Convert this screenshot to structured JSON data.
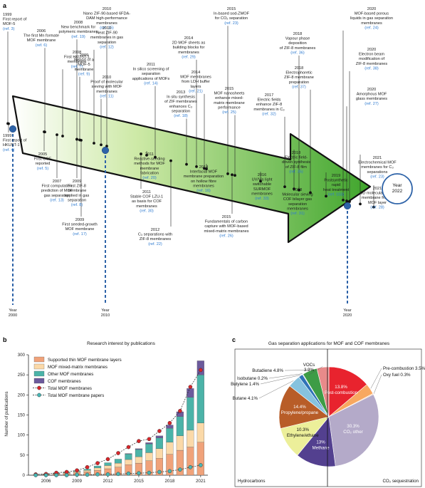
{
  "panels": {
    "a": "a",
    "b": "b",
    "c": "c"
  },
  "timeline": {
    "arrow_label": "Year 2022",
    "year_markers": [
      {
        "lines": [
          "Year",
          "2000"
        ]
      },
      {
        "lines": [
          "Year",
          "2010"
        ]
      },
      {
        "lines": [
          "Year",
          "2020"
        ]
      }
    ],
    "events": [
      {
        "lines": [
          "1999",
          "First report of",
          "MOF-5"
        ],
        "ref": "(ref. 3)"
      },
      {
        "lines": [
          "1999",
          "First report of",
          "HKUST-1"
        ],
        "ref": "(ref. 4)"
      },
      {
        "lines": [
          "2005",
          "First COF",
          "reported"
        ],
        "ref": "(ref. 5)"
      },
      {
        "lines": [
          "2006",
          "The first Mn formate",
          "MOF membrane"
        ],
        "ref": "(ref. 6)"
      },
      {
        "lines": [
          "2007",
          "First computation",
          "prediction of MOF",
          "gas separation"
        ],
        "ref": "(ref. 13)"
      },
      {
        "lines": [
          "2008",
          "New benchmark for",
          "polymeric membranes"
        ],
        "ref": "(ref. 19)"
      },
      {
        "lines": [
          "2008",
          "First HKUST-1",
          "membrane"
        ],
        "ref": "(ref. 7)"
      },
      {
        "lines": [
          "2009",
          "First ZIF-8",
          "membrane",
          "applied in gas",
          "separation"
        ],
        "ref": "(ref. 8)"
      },
      {
        "lines": [
          "2009",
          "First seeded-growth",
          "MOF membrane"
        ],
        "ref": "(ref. 17)"
      },
      {
        "lines": [
          "2009",
          "Report of a",
          "MOF-5",
          "membrane"
        ],
        "ref": "(ref. 9)"
      },
      {
        "lines": [
          "2010",
          "Nano ZIF-90-based 6FDA-",
          "DAM high-performance",
          "membranes"
        ],
        "ref": "(ref. 15)"
      },
      {
        "lines": [
          "2010",
          "Neat ZIF-90",
          "membranes in gas",
          "separation"
        ],
        "ref": "(ref. 12)"
      },
      {
        "lines": [
          "2010",
          "Proof of molecular",
          "sieving with MOF",
          "membranes"
        ],
        "ref": "(ref. 11)"
      },
      {
        "lines": [
          "2011",
          "In silico screening of",
          "separation",
          "applications of MOFs"
        ],
        "ref": "(ref. 14)"
      },
      {
        "lines": [
          "2011",
          "Reactive-seeding",
          "methods for MOF",
          "membrane",
          "fabrication"
        ],
        "ref": "(ref. 20)"
      },
      {
        "lines": [
          "2011",
          "Stable COF LZU-1",
          "as basis for COF",
          "membranes"
        ],
        "ref": "(ref. 30)"
      },
      {
        "lines": [
          "2012",
          "C₃ separations with",
          "ZIF-8 membranes"
        ],
        "ref": "(ref. 22)"
      },
      {
        "lines": [
          "2013",
          "In situ synthesis",
          "of ZIF membranes",
          "enhances C₃",
          "separation"
        ],
        "ref": "(ref. 18)"
      },
      {
        "lines": [
          "2014",
          "2D MOF sheets as",
          "building blocks for",
          "membranes"
        ],
        "ref": "(ref. 29)"
      },
      {
        "lines": [
          "2014",
          "MOF membranes",
          "from LDH buffer",
          "layers"
        ],
        "ref": "(ref. 21)"
      },
      {
        "lines": [
          "2014",
          "Interfacial MOF",
          "membrane preparation",
          "on hollow fibre",
          "membranes"
        ],
        "ref": "(ref. 16)"
      },
      {
        "lines": [
          "2015",
          "In-based sod-ZMOF",
          "for CO₂ separation"
        ],
        "ref": "(ref. 23)"
      },
      {
        "lines": [
          "2015",
          "MOF nanosheets",
          "enhance mixed-",
          "matrix membrane",
          "performance"
        ],
        "ref": "(ref. 25)"
      },
      {
        "lines": [
          "2015",
          "Fundamentals of carbon",
          "capture with MOF-based",
          "mixed-matrix membranes"
        ],
        "ref": "(ref. 26)"
      },
      {
        "lines": [
          "2016",
          "UV/Vis light",
          "switchable",
          "SURMOF",
          "membranes"
        ],
        "ref": "(ref. 33)"
      },
      {
        "lines": [
          "2017",
          "Electric fields",
          "enhance ZIF-8",
          "membranes in C₃"
        ],
        "ref": "(ref. 32)"
      },
      {
        "lines": [
          "2018",
          "Vapour phase",
          "deposition",
          "of ZIF-8 membranes"
        ],
        "ref": "(ref. 36)"
      },
      {
        "lines": [
          "2018",
          "Electrophoretic",
          "ZIF-8 membrane",
          "preparation"
        ],
        "ref": "(ref. 37)"
      },
      {
        "lines": [
          "2018",
          "Electric field-",
          "driven synthesis",
          "of ZIF-8 film"
        ],
        "ref": "(ref. 35)"
      },
      {
        "lines": [
          "2018",
          "Molecular sieving",
          "COF bilayer gas",
          "separation",
          "membranes"
        ],
        "ref": "(ref. 31)"
      },
      {
        "lines": [
          "2019",
          "Postsynthetic",
          "rapid",
          "heat treatment"
        ],
        "ref": "(ref. 103)"
      },
      {
        "lines": [
          "2020",
          "MOF-based porous",
          "liquids in gas separation",
          "membranes"
        ],
        "ref": "(ref. 24)"
      },
      {
        "lines": [
          "2020",
          "Electron beam",
          "modification of",
          "ZIF-8 membranes"
        ],
        "ref": "(ref. 38)"
      },
      {
        "lines": [
          "2020",
          "Amorphous MOF",
          "glass membranes"
        ],
        "ref": "(ref. 27)"
      },
      {
        "lines": [
          "2021",
          "Electrochemical MOF",
          "membranes for C₃",
          "separations"
        ],
        "ref": "(ref. 23)"
      },
      {
        "lines": [
          "2021",
          "0D molecular sieve",
          "membrane from a",
          "MOF layer"
        ],
        "ref": "(ref. 28)"
      }
    ]
  },
  "chart_data": [
    {
      "type": "bar",
      "title": "Research interest by publications",
      "ylabel": "Number of publications",
      "xlabel": "",
      "ylim": [
        0,
        300
      ],
      "yticks": [
        0,
        50,
        100,
        150,
        200,
        250,
        300
      ],
      "x": [
        2005,
        2006,
        2007,
        2008,
        2009,
        2010,
        2011,
        2012,
        2013,
        2014,
        2015,
        2016,
        2017,
        2018,
        2019,
        2020,
        2021
      ],
      "xticks": [
        2006,
        2009,
        2012,
        2015,
        2018,
        2021
      ],
      "xtick_labels": [
        "2006",
        "2009",
        "2012",
        "2015",
        "2018",
        "2021"
      ],
      "legend_position": "top-left",
      "series": [
        {
          "name": "Supported thin MOF membrane layers",
          "kind": "bar",
          "color": "#f0a27a",
          "values": [
            1,
            2,
            3,
            4,
            6,
            8,
            12,
            16,
            20,
            26,
            30,
            36,
            42,
            52,
            62,
            70,
            82
          ]
        },
        {
          "name": "MOF mixed-matrix membranes",
          "kind": "bar",
          "color": "#fbd9a8",
          "values": [
            0,
            1,
            1,
            2,
            3,
            4,
            6,
            8,
            10,
            13,
            16,
            20,
            24,
            30,
            36,
            42,
            48
          ]
        },
        {
          "name": "Other MOF membranes",
          "kind": "bar",
          "color": "#4bb3a8",
          "values": [
            0,
            0,
            1,
            1,
            2,
            3,
            5,
            7,
            10,
            14,
            18,
            22,
            27,
            35,
            48,
            82,
            120
          ]
        },
        {
          "name": "COF membranes",
          "kind": "bar",
          "color": "#6c5a9c",
          "values": [
            0,
            0,
            0,
            0,
            0,
            0,
            0,
            0,
            0,
            1,
            2,
            3,
            5,
            8,
            12,
            22,
            35
          ]
        },
        {
          "name": "Total MOF membranes",
          "kind": "line",
          "color": "#d8262a",
          "values": [
            2,
            3,
            6,
            8,
            12,
            20,
            30,
            40,
            55,
            70,
            85,
            90,
            110,
            130,
            160,
            220,
            262
          ]
        },
        {
          "name": "Total MOF membrane papers",
          "kind": "line",
          "color": "#48b6b4",
          "values": [
            0,
            0,
            0,
            0,
            1,
            1,
            2,
            2,
            3,
            4,
            5,
            6,
            8,
            10,
            14,
            20,
            25
          ]
        }
      ]
    },
    {
      "type": "pie",
      "title": "Gas separation applications for MOF and COF membranes",
      "labels": [
        "Post-combustion",
        "Pre-combustion",
        "Oxy fuel",
        "CO₂ other",
        "Methane",
        "Ethylene/ethane",
        "Propylene/propane",
        "Butane",
        "Butylene",
        "Isobutane",
        "Butadiene",
        "VOCs"
      ],
      "values": [
        13.8,
        3.5,
        0.3,
        30.3,
        13,
        10.3,
        14.4,
        4.1,
        1.4,
        0.2,
        4.8,
        3.9
      ],
      "value_labels": [
        "13.8%",
        "3.5%",
        "0.3%",
        "30.3%",
        "13%",
        "10.3%",
        "14.4%",
        "4.1%",
        "1.4%",
        "0.2%",
        "4.8%",
        "3.9%"
      ],
      "colors": [
        "#e8232e",
        "#f8a860",
        "#f6c79a",
        "#b4aac9",
        "#53408f",
        "#ecef9a",
        "#b85d28",
        "#86c2de",
        "#2f73b8",
        "#7b8fd0",
        "#3d9c46",
        "#e88a8a"
      ],
      "group_labels": [
        "Hydrocarbons",
        "CO₂ sequestration"
      ]
    }
  ]
}
